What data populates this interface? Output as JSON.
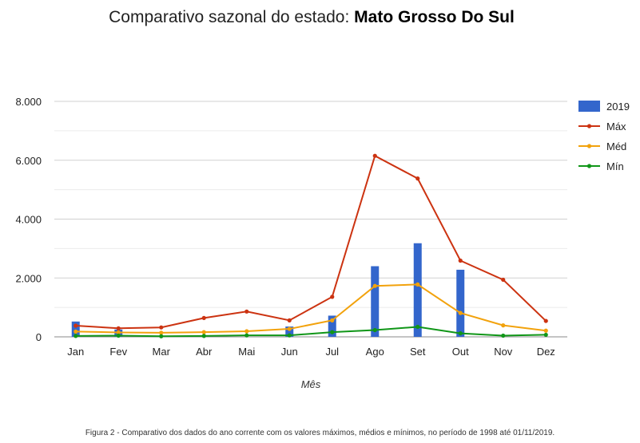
{
  "title_prefix": "Comparativo sazonal do estado: ",
  "title_state": "Mato Grosso Do Sul",
  "caption": "Figura 2 - Comparativo dos dados do ano corrente com os valores máximos, médios e mínimos, no período de 1998 até 01/11/2019.",
  "chart_data": {
    "type": "bar",
    "categories": [
      "Jan",
      "Fev",
      "Mar",
      "Abr",
      "Mai",
      "Jun",
      "Jul",
      "Ago",
      "Set",
      "Out",
      "Nov",
      "Dez"
    ],
    "xlabel": "Mês",
    "ylabel": "",
    "ylim": [
      0,
      8000
    ],
    "yticks": [
      0,
      2000,
      4000,
      6000,
      8000
    ],
    "ytick_labels": [
      "0",
      "2.000",
      "4.000",
      "6.000",
      "8.000"
    ],
    "grid": true,
    "legend": "right",
    "series": [
      {
        "name": "2019",
        "type": "bar",
        "color": "#3366cc",
        "values": [
          520,
          250,
          0,
          0,
          0,
          350,
          720,
          2400,
          3180,
          2280,
          0,
          0
        ]
      },
      {
        "name": "Máx",
        "type": "line",
        "color": "#cc3311",
        "values": [
          380,
          290,
          320,
          640,
          860,
          560,
          1360,
          6150,
          5380,
          2590,
          1940,
          540
        ]
      },
      {
        "name": "Méd",
        "type": "line",
        "color": "#f2a20c",
        "values": [
          180,
          150,
          140,
          160,
          190,
          270,
          560,
          1730,
          1780,
          810,
          390,
          210
        ]
      },
      {
        "name": "Mín",
        "type": "line",
        "color": "#109618",
        "values": [
          30,
          40,
          20,
          30,
          50,
          50,
          160,
          230,
          340,
          120,
          40,
          70
        ]
      }
    ]
  }
}
